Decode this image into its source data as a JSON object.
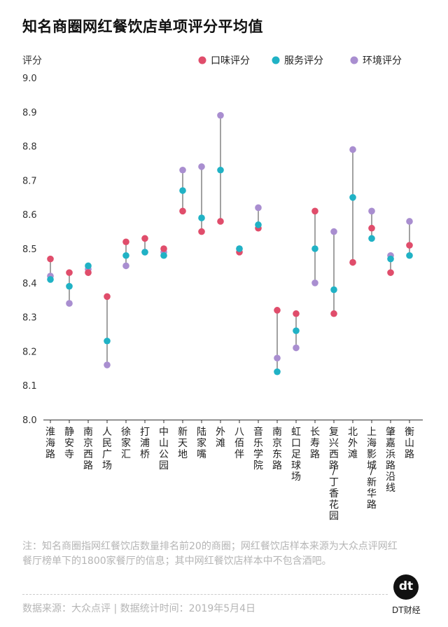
{
  "title": "知名商圈网红餐饮店单项评分平均值",
  "note": "注：知名商圈指网红餐饮店数量排名前20的商圈；网红餐饮店样本来源为大众点评网红餐厅榜单下的1800家餐厅的信息；其中网红餐饮店样本中不包含酒吧。",
  "source": "数据来源：大众点评 | 数据统计时间：2019年5月4日",
  "logo": {
    "mark": "dt",
    "name": "DT财经"
  },
  "chart_data": {
    "type": "scatter",
    "ylabel": "评分",
    "ylim": [
      8.0,
      9.0
    ],
    "yticks": [
      "8.0",
      "8.1",
      "8.2",
      "8.3",
      "8.4",
      "8.5",
      "8.6",
      "8.7",
      "8.8",
      "8.9",
      "9.0"
    ],
    "legend_position": "top-right",
    "categories": [
      "淮海路",
      "静安寺",
      "南京西路",
      "人民广场",
      "徐家汇",
      "打浦桥",
      "中山公园",
      "新天地",
      "陆家嘴",
      "外滩",
      "八佰伴",
      "音乐学院",
      "南京东路",
      "虹口足球场",
      "长寿路",
      "复兴西路/丁香花园",
      "北外滩",
      "上海影城/新华路",
      "肇嘉浜路沿线",
      "衡山路"
    ],
    "series": [
      {
        "name": "口味评分",
        "color": "#e04d6b",
        "values": [
          8.47,
          8.43,
          8.43,
          8.36,
          8.52,
          8.53,
          8.5,
          8.61,
          8.55,
          8.58,
          8.49,
          8.56,
          8.32,
          8.31,
          8.61,
          8.31,
          8.46,
          8.56,
          8.43,
          8.51
        ]
      },
      {
        "name": "服务评分",
        "color": "#20b2c5",
        "values": [
          8.41,
          8.39,
          8.45,
          8.23,
          8.48,
          8.49,
          8.48,
          8.67,
          8.59,
          8.73,
          8.5,
          8.57,
          8.14,
          8.26,
          8.5,
          8.38,
          8.65,
          8.53,
          8.47,
          8.48
        ]
      },
      {
        "name": "环境评分",
        "color": "#a98ed0",
        "values": [
          8.42,
          8.34,
          8.44,
          8.16,
          8.45,
          8.49,
          8.49,
          8.73,
          8.74,
          8.89,
          8.5,
          8.62,
          8.18,
          8.21,
          8.4,
          8.55,
          8.79,
          8.61,
          8.48,
          8.58
        ]
      }
    ]
  }
}
